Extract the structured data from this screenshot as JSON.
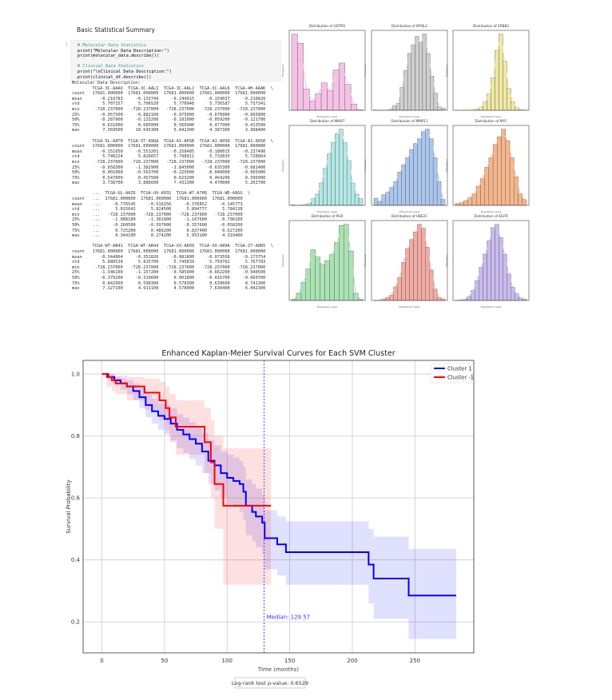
{
  "notebook": {
    "section_title": "Basic Statistical Summary",
    "prompt": "[ ]:",
    "code_lines": [
      {
        "type": "comment",
        "text": "# Molecular Data Statistics"
      },
      {
        "type": "code",
        "text": "print(\"Molecular Data Description:\")"
      },
      {
        "type": "code",
        "text": "print(molecular_data.describe())"
      },
      {
        "type": "blank",
        "text": ""
      },
      {
        "type": "comment",
        "text": "# Clinical Data Statistics"
      },
      {
        "type": "code",
        "text": "print(\"\\nClinical Data Description:\")"
      },
      {
        "type": "code",
        "text": "print(clinical_df.describe())"
      }
    ],
    "output_header": "Molecular Data Description:",
    "row_labels": [
      "count",
      "mean",
      "std",
      "min",
      "25%",
      "50%",
      "75%",
      "max"
    ],
    "blocks": [
      {
        "ellipsis": false,
        "columns": [
          "TCGA-3C-AAAU",
          "TCGA-3C-AALI",
          "TCGA-3C-AALJ",
          "TCGA-3C-AALK",
          "TCGA-4H-AAAK"
        ],
        "rows": [
          [
            "17681.000000",
            "17681.000000",
            "17681.000000",
            "17681.000000",
            "17681.000000"
          ],
          [
            "-0.210783",
            "-0.133749",
            "-0.244915",
            "-0.159037",
            "-0.210820"
          ],
          [
            "5.707157",
            "5.706520",
            "5.770948",
            "5.736587",
            "5.737341"
          ],
          [
            "-728.237000",
            "-728.237000",
            "-728.237000",
            "-728.237000",
            "-728.237000"
          ],
          [
            "-0.957500",
            "-0.882100",
            "-0.975000",
            "-0.670900",
            "-0.665800"
          ],
          [
            "-0.287900",
            "-0.133200",
            "-0.181900",
            "-0.059200",
            "-0.121700"
          ],
          [
            "0.631000",
            "0.685000",
            "0.566900",
            "0.477900",
            "0.413500"
          ],
          [
            "7.369500",
            "10.645300",
            "5.842300",
            "4.387300",
            "3.908400"
          ]
        ]
      },
      {
        "ellipsis": false,
        "columns": [
          "TCGA-5L-AAT0",
          "TCGA-5T-A9QA",
          "TCGA-A1-A0SB",
          "TCGA-A1-A0SD",
          "TCGA-A1-A0SE"
        ],
        "rows": [
          [
            "17681.000000",
            "17681.000000",
            "17681.000000",
            "17681.000000",
            "17681.000000"
          ],
          [
            "-0.151950",
            "-0.553201",
            "-0.258485",
            "-0.180015",
            "-0.237490"
          ],
          [
            "5.740224",
            "5.826657",
            "5.798911",
            "5.733835",
            "5.728864"
          ],
          [
            "-728.237000",
            "-728.237000",
            "-728.237000",
            "-728.237000",
            "-728.237000"
          ],
          [
            "-0.658300",
            "-1.382900",
            "-1.845000",
            "-0.635300",
            "-0.681400"
          ],
          [
            "0.001000",
            "-0.563700",
            "-0.225000",
            "-0.048000",
            "-0.065900"
          ],
          [
            "0.547000",
            "0.457500",
            "0.623200",
            "0.464200",
            "0.395000"
          ],
          [
            "3.738700",
            "3.886600",
            "7.431300",
            "4.470000",
            "5.263700"
          ]
        ]
      },
      {
        "ellipsis": true,
        "columns": [
          "TCGA-UL-AAZ6",
          "TCGA-UU-A93S",
          "TCGA-W7-A7HQ",
          "TCGA-WD-A8GG"
        ],
        "rows": [
          [
            "17681.000000",
            "17681.000000",
            "17681.000000",
            "17681.000000"
          ],
          [
            "-0.776545",
            "-0.516256",
            "-0.376852",
            "-0.145773"
          ],
          [
            "5.015642",
            "5.824500",
            "5.894777",
            "5.784138"
          ],
          [
            "-728.237000",
            "-728.237000",
            "-728.237000",
            "-728.237000"
          ],
          [
            "-1.008100",
            "-1.301900",
            "-1.167600",
            "-0.796100"
          ],
          [
            "-0.260500",
            "-0.597000",
            "-0.357600",
            "-0.058200"
          ],
          [
            "0.725200",
            "0.486200",
            "0.837400",
            "0.627200"
          ],
          [
            "9.344100",
            "8.274200",
            "5.953100",
            "4.319400"
          ]
        ]
      },
      {
        "ellipsis": false,
        "columns": [
          "TCGA-WT-AB41",
          "TCGA-WT-AB44",
          "TCGA-XX-A899",
          "TCGA-XX-A89A",
          "TCGA-Z7-A8R5"
        ],
        "rows": [
          [
            "17681.000000",
            "17681.000000",
            "17681.000000",
            "17681.000000",
            "17681.000000"
          ],
          [
            "-0.344064",
            "-0.352826",
            "-0.081800",
            "-0.073550",
            "-0.173754"
          ],
          [
            "5.880530",
            "5.815700",
            "5.745839",
            "5.759762",
            "5.767783"
          ],
          [
            "-728.237000",
            "-728.237000",
            "-728.237000",
            "-728.237000",
            "-728.237000"
          ],
          [
            "-1.346100",
            "-1.157200",
            "-0.585900",
            "-0.662200",
            "-0.940500"
          ],
          [
            "-0.379200",
            "-0.319600",
            "0.001800",
            "-0.016700",
            "-0.060700"
          ],
          [
            "0.842900",
            "0.598300",
            "0.578300",
            "0.639600",
            "0.741300"
          ],
          [
            "7.127100",
            "4.911100",
            "4.578000",
            "7.630400",
            "6.042300"
          ]
        ]
      }
    ]
  },
  "chart_data": [
    {
      "type": "bar",
      "title": "Distribution of GSTM1",
      "xlabel": "Expression Level",
      "ylabel": "Frequency",
      "color": "#f5c1e4",
      "values": [
        1000,
        880,
        280,
        120,
        220,
        360,
        260,
        530,
        620,
        340,
        80,
        5
      ]
    },
    {
      "type": "bar",
      "title": "Distribution of MYBL2",
      "xlabel": "Expression Level",
      "ylabel": "Frequency",
      "color": "#cfcfcf",
      "values": [
        5,
        2,
        0,
        5,
        20,
        80,
        120,
        400,
        700,
        1000,
        1150,
        1300,
        1200,
        1340,
        1000,
        600,
        300,
        60,
        40
      ]
    },
    {
      "type": "bar",
      "title": "Distribution of ERBB2",
      "xlabel": "Expression Level",
      "ylabel": "Frequency",
      "color": "#efe9a2",
      "values": [
        2,
        2,
        3,
        5,
        10,
        30,
        60,
        150,
        300,
        600,
        1100,
        1400,
        900,
        400,
        150,
        50,
        20,
        5
      ]
    },
    {
      "type": "bar",
      "title": "Distribution of MKI67",
      "xlabel": "Expression Level",
      "ylabel": "Frequency",
      "color": "#b2e8e6",
      "values": [
        5,
        2,
        5,
        10,
        20,
        60,
        100,
        200,
        330,
        460,
        560,
        640,
        680,
        560,
        400,
        200,
        100,
        60
      ]
    },
    {
      "type": "bar",
      "title": "Distribution of MMP11",
      "xlabel": "Expression Level",
      "ylabel": "Frequency",
      "color": "#abc6ee",
      "values": [
        60,
        30,
        90,
        110,
        150,
        200,
        280,
        340,
        400,
        470,
        520,
        560,
        620,
        640,
        560,
        400,
        200,
        50
      ]
    },
    {
      "type": "bar",
      "title": "Distribution of MYC",
      "xlabel": "Expression Level",
      "ylabel": "Frequency",
      "color": "#f6b68b",
      "values": [
        20,
        30,
        50,
        80,
        120,
        200,
        280,
        400,
        500,
        640,
        720,
        800,
        680,
        500,
        300,
        120,
        60
      ]
    },
    {
      "type": "bar",
      "title": "Distribution of PGR",
      "xlabel": "Expression Level",
      "ylabel": "Frequency",
      "color": "#abe2b3",
      "values": [
        10,
        60,
        150,
        260,
        420,
        360,
        300,
        330,
        380,
        480,
        620,
        630,
        410,
        60,
        10
      ]
    },
    {
      "type": "bar",
      "title": "Distribution of UBE2C",
      "xlabel": "Expression Level",
      "ylabel": "Frequency",
      "color": "#f3aaa3",
      "values": [
        2,
        5,
        20,
        40,
        70,
        180,
        300,
        500,
        680,
        800,
        900,
        1000,
        950,
        700,
        400,
        150,
        40,
        20
      ]
    },
    {
      "type": "bar",
      "title": "Distribution of EGFR",
      "xlabel": "Expression Level",
      "ylabel": "Frequency",
      "color": "#c9bbee",
      "values": [
        3,
        10,
        20,
        60,
        150,
        300,
        500,
        700,
        900,
        1100,
        1150,
        950,
        700,
        400,
        200,
        100,
        40,
        20
      ]
    },
    {
      "type": "line",
      "title": "Enhanced Kaplan-Meier Survival Curves for Each SVM Cluster",
      "xlabel": "Time (months)",
      "ylabel": "Survival Probability",
      "xlim": [
        -15,
        297
      ],
      "ylim": [
        0.1,
        1.044
      ],
      "xticks": [
        0,
        50,
        100,
        150,
        200,
        250
      ],
      "yticks": [
        0.2,
        0.4,
        0.6,
        0.8,
        1.0
      ],
      "grid": true,
      "legend": "top-right",
      "median_line": {
        "x": 129.57,
        "label": "Median: 129.57",
        "color": "#3333ff"
      },
      "annotation": "Log-rank test p-value: 0.6529",
      "series": [
        {
          "name": "Cluster 1",
          "color": "#0000ff",
          "end": 283,
          "x": [
            0,
            5,
            10,
            15,
            20,
            25,
            30,
            35,
            40,
            45,
            50,
            55,
            60,
            65,
            70,
            75,
            80,
            85,
            90,
            95,
            100,
            105,
            110,
            113,
            115,
            120,
            123,
            128,
            130,
            140,
            147,
            213,
            217,
            245
          ],
          "y": [
            1,
            0.99,
            0.98,
            0.97,
            0.96,
            0.945,
            0.925,
            0.9,
            0.88,
            0.865,
            0.855,
            0.84,
            0.82,
            0.805,
            0.79,
            0.775,
            0.75,
            0.72,
            0.705,
            0.68,
            0.665,
            0.655,
            0.645,
            0.62,
            0.575,
            0.555,
            0.54,
            0.52,
            0.47,
            0.45,
            0.425,
            0.385,
            0.34,
            0.285
          ],
          "ci_lower": [
            1,
            0.98,
            0.965,
            0.95,
            0.935,
            0.915,
            0.89,
            0.86,
            0.84,
            0.82,
            0.805,
            0.785,
            0.76,
            0.745,
            0.725,
            0.705,
            0.68,
            0.645,
            0.625,
            0.6,
            0.58,
            0.57,
            0.555,
            0.53,
            0.48,
            0.46,
            0.44,
            0.42,
            0.37,
            0.35,
            0.32,
            0.26,
            0.21,
            0.145
          ],
          "ci_upper": [
            1,
            1,
            0.99,
            0.985,
            0.98,
            0.97,
            0.955,
            0.935,
            0.92,
            0.905,
            0.9,
            0.89,
            0.87,
            0.86,
            0.845,
            0.83,
            0.81,
            0.785,
            0.77,
            0.75,
            0.74,
            0.73,
            0.72,
            0.7,
            0.66,
            0.645,
            0.63,
            0.61,
            0.56,
            0.54,
            0.525,
            0.5,
            0.475,
            0.435
          ]
        },
        {
          "name": "Cluster -1",
          "color": "#ff0000",
          "end": 135,
          "x": [
            0,
            4,
            8,
            11,
            20,
            34,
            46,
            51,
            54,
            59,
            82,
            87,
            90,
            97
          ],
          "y": [
            1,
            0.99,
            0.98,
            0.97,
            0.96,
            0.94,
            0.915,
            0.89,
            0.86,
            0.83,
            0.78,
            0.715,
            0.645,
            0.575
          ],
          "ci_lower": [
            1,
            0.96,
            0.945,
            0.935,
            0.915,
            0.885,
            0.85,
            0.82,
            0.78,
            0.74,
            0.68,
            0.6,
            0.5,
            0.32
          ],
          "ci_upper": [
            1,
            1,
            1,
            0.995,
            0.99,
            0.985,
            0.975,
            0.96,
            0.935,
            0.915,
            0.89,
            0.85,
            0.8,
            0.76
          ]
        }
      ]
    }
  ]
}
